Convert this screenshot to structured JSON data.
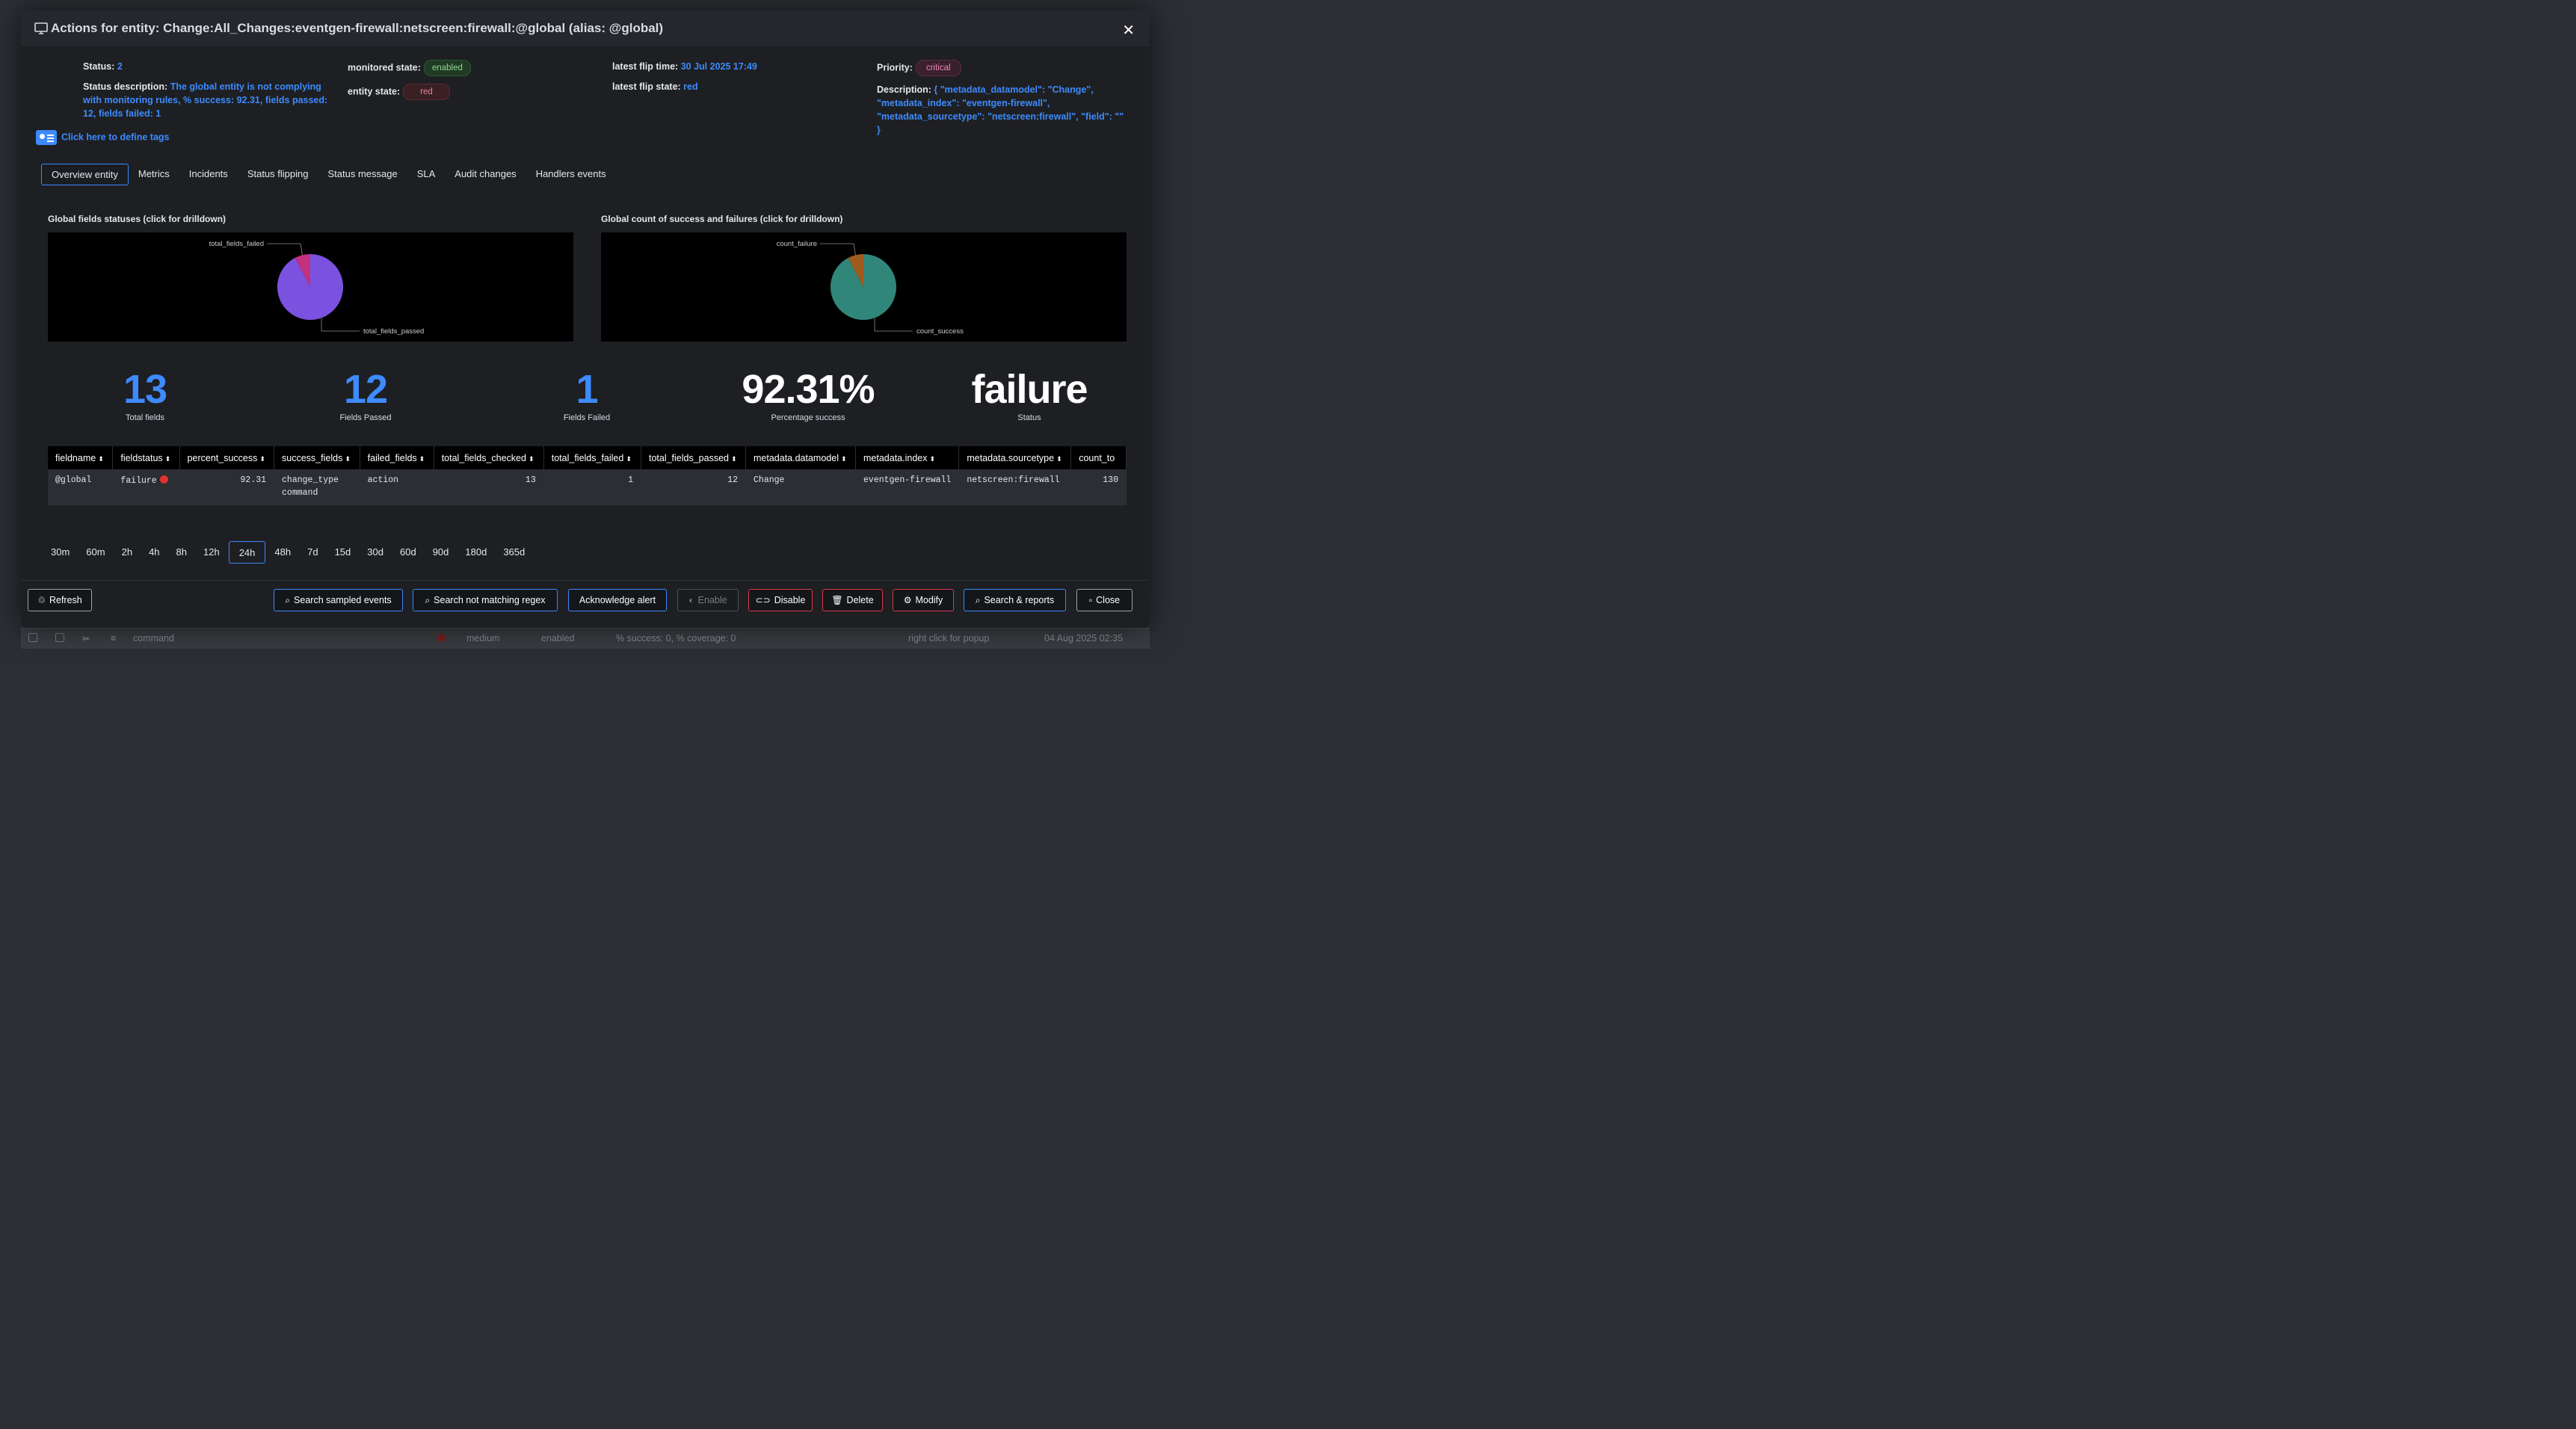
{
  "modal": {
    "title": "Actions for entity: Change:All_Changes:eventgen-firewall:netscreen:firewall:@global (alias: @global)"
  },
  "info": {
    "status_label": "Status:",
    "status_value": "2",
    "status_desc_label": "Status description:",
    "status_desc_value": "The global entity is not complying with monitoring rules, % success: 92.31, fields passed: 12, fields failed: 1",
    "monitored_state_label": "monitored state:",
    "monitored_state_value": "enabled",
    "entity_state_label": "entity state:",
    "entity_state_value": "red",
    "latest_flip_time_label": "latest flip time:",
    "latest_flip_time_value": "30 Jul 2025 17:49",
    "latest_flip_state_label": "latest flip state:",
    "latest_flip_state_value": "red",
    "priority_label": "Priority:",
    "priority_value": "critical",
    "description_label": "Description:",
    "description_value": "{ \"metadata_datamodel\": \"Change\", \"metadata_index\": \"eventgen-firewall\", \"metadata_sourcetype\": \"netscreen:firewall\", \"field\": \"\" }"
  },
  "tags_link": "Click here to define tags",
  "tabs": [
    "Overview entity",
    "Metrics",
    "Incidents",
    "Status flipping",
    "Status message",
    "SLA",
    "Audit changes",
    "Handlers events"
  ],
  "charts_meta": {
    "left_title": "Global fields statuses (click for drilldown)",
    "right_title": "Global count of success and failures (click for drilldown)",
    "colors": {
      "passed": "#7b52e0",
      "failed": "#c2307e",
      "success": "#31867a",
      "failure": "#a05a1e"
    }
  },
  "chart_data": [
    {
      "type": "pie",
      "title": "Global fields statuses (click for drilldown)",
      "labels": [
        "total_fields_passed",
        "total_fields_failed"
      ],
      "values": [
        12,
        1
      ]
    },
    {
      "type": "pie",
      "title": "Global count of success and failures (click for drilldown)",
      "labels": [
        "count_success",
        "count_failure"
      ],
      "values": [
        12,
        1
      ]
    }
  ],
  "kpis": [
    {
      "value": "13",
      "label": "Total fields",
      "color": "#3d8bfd"
    },
    {
      "value": "12",
      "label": "Fields Passed",
      "color": "#3d8bfd"
    },
    {
      "value": "1",
      "label": "Fields Failed",
      "color": "#3d8bfd"
    },
    {
      "value": "92.31%",
      "label": "Percentage success",
      "color": "#ffffff"
    },
    {
      "value": "failure",
      "label": "Status",
      "color": "#ffffff"
    }
  ],
  "table": {
    "headers": [
      "fieldname",
      "fieldstatus",
      "percent_success",
      "success_fields",
      "failed_fields",
      "total_fields_checked",
      "total_fields_failed",
      "total_fields_passed",
      "metadata.datamodel",
      "metadata.index",
      "metadata.sourcetype",
      "count_to"
    ],
    "row": {
      "fieldname": "@global",
      "fieldstatus": "failure",
      "percent_success": "92.31",
      "success_fields_1": "change_type",
      "success_fields_2": "command",
      "failed_fields": "action",
      "total_fields_checked": "13",
      "total_fields_failed": "1",
      "total_fields_passed": "12",
      "metadata_datamodel": "Change",
      "metadata_index": "eventgen-firewall",
      "metadata_sourcetype": "netscreen:firewall",
      "count_to": "130"
    }
  },
  "time_ranges": [
    "30m",
    "60m",
    "2h",
    "4h",
    "8h",
    "12h",
    "24h",
    "48h",
    "7d",
    "15d",
    "30d",
    "60d",
    "90d",
    "180d",
    "365d"
  ],
  "time_range_selected": "24h",
  "buttons": {
    "refresh": "Refresh",
    "search_sampled": "Search sampled events",
    "search_not_matching": "Search not matching regex",
    "acknowledge": "Acknowledge alert",
    "enable": "Enable",
    "disable": "Disable",
    "delete": "Delete",
    "modify": "Modify",
    "search_reports": "Search & reports",
    "close": "Close"
  },
  "background_row": {
    "name": "command",
    "priority": "medium",
    "state": "enabled",
    "status": "% success: 0, % coverage: 0",
    "hint": "right click for popup",
    "time": "04 Aug 2025 02:35"
  }
}
